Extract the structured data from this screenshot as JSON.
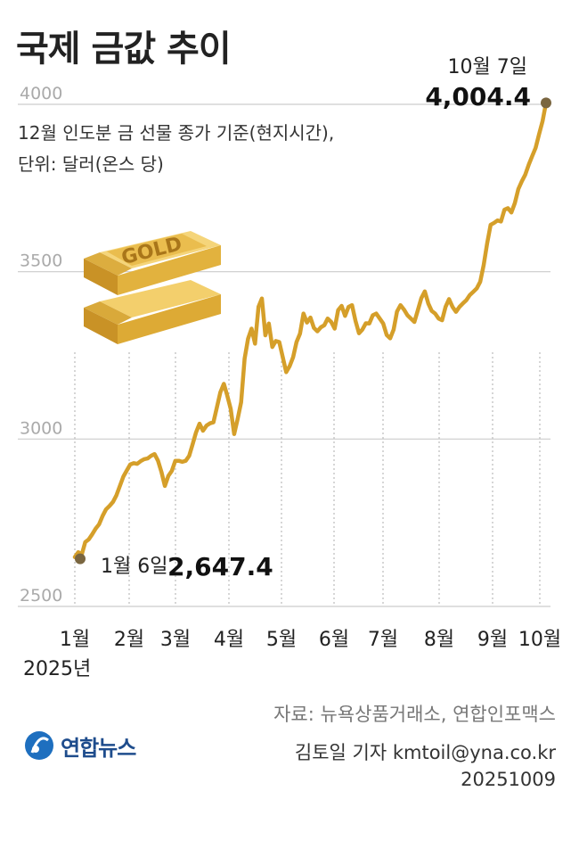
{
  "header": {
    "title": "국제 금값 추이",
    "subtitle_line1": "12월 인도분 금 선물 종가 기준(현지시간),",
    "subtitle_line2": "단위: 달러(온스 당)"
  },
  "illustration": {
    "label": "GOLD",
    "icon": "gold-bars-icon",
    "color": "#e6b740"
  },
  "colors": {
    "line": "#d59f2a",
    "marker": "#7a6640",
    "grid": "#cccccc",
    "accent_gold": "#e6b740"
  },
  "chart_data": {
    "type": "line",
    "title": "국제 금값 추이",
    "xlabel": "",
    "ylabel": "",
    "ylim": [
      2500,
      4000
    ],
    "yticks": [
      2500,
      3000,
      3500,
      4000
    ],
    "ytick_labels": [
      "2500",
      "3000",
      "3500",
      "4000"
    ],
    "months": [
      "1월",
      "2월",
      "3월",
      "4월",
      "5월",
      "6월",
      "7월",
      "8월",
      "9월",
      "10월"
    ],
    "year_label": "2025년",
    "grid": true,
    "series": [
      {
        "values": [
          2647.4,
          2662,
          2655,
          2692,
          2700,
          2715,
          2732,
          2745,
          2770,
          2790,
          2800,
          2812,
          2832,
          2860,
          2888,
          2906,
          2924,
          2928,
          2926,
          2934,
          2940,
          2942,
          2950,
          2955,
          2935,
          2902,
          2860,
          2890,
          2905,
          2935,
          2935,
          2932,
          2935,
          2950,
          2985,
          3020,
          3046,
          3025,
          3040,
          3047,
          3050,
          3095,
          3140,
          3165,
          3130,
          3090,
          3015,
          3060,
          3110,
          3240,
          3300,
          3330,
          3285,
          3395,
          3420,
          3310,
          3345,
          3275,
          3293,
          3290,
          3245,
          3200,
          3218,
          3245,
          3290,
          3315,
          3375,
          3348,
          3363,
          3332,
          3322,
          3334,
          3340,
          3360,
          3350,
          3330,
          3385,
          3398,
          3368,
          3395,
          3400,
          3353,
          3316,
          3327,
          3346,
          3345,
          3370,
          3375,
          3360,
          3345,
          3311,
          3301,
          3327,
          3381,
          3400,
          3387,
          3370,
          3360,
          3350,
          3385,
          3421,
          3441,
          3405,
          3383,
          3375,
          3360,
          3355,
          3395,
          3418,
          3395,
          3380,
          3395,
          3405,
          3415,
          3430,
          3440,
          3450,
          3470,
          3520,
          3585,
          3640,
          3646,
          3653,
          3650,
          3685,
          3690,
          3677,
          3705,
          3747,
          3770,
          3790,
          3820,
          3845,
          3870,
          3911,
          3950,
          4004.4
        ]
      }
    ],
    "annotations": [
      {
        "date": "1월 6일",
        "value": "2,647.4"
      },
      {
        "date": "10월 7일",
        "value": "4,004.4"
      }
    ]
  },
  "footer": {
    "source": "자료: 뉴욕상품거래소, 연합인포맥스",
    "reporter": "김토일 기자 kmtoil@yna.co.kr",
    "date": "20251009",
    "logo_text": "연합뉴스"
  }
}
